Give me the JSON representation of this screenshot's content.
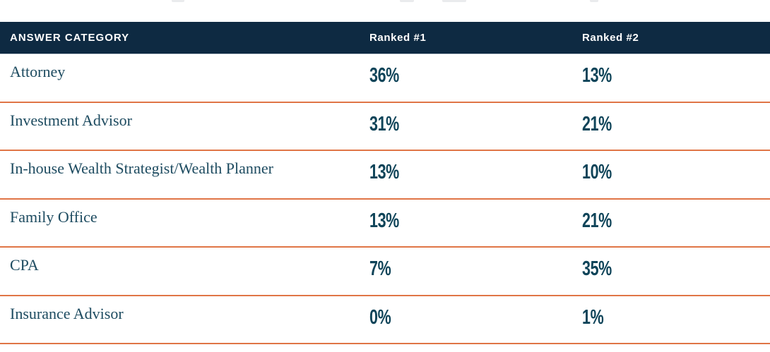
{
  "table": {
    "columns": [
      "ANSWER CATEGORY",
      "Ranked #1",
      "Ranked #2"
    ],
    "rows": [
      {
        "category": "Attorney",
        "ranked1": "36%",
        "ranked2": "13%"
      },
      {
        "category": "Investment Advisor",
        "ranked1": "31%",
        "ranked2": "21%"
      },
      {
        "category": "In-house Wealth Strategist/Wealth Planner",
        "ranked1": "13%",
        "ranked2": "10%"
      },
      {
        "category": "Family Office",
        "ranked1": "13%",
        "ranked2": "21%"
      },
      {
        "category": "CPA",
        "ranked1": "7%",
        "ranked2": "35%"
      },
      {
        "category": "Insurance Advisor",
        "ranked1": "0%",
        "ranked2": "1%"
      }
    ]
  },
  "colors": {
    "header_background": "#0e2a42",
    "header_text": "#ffffff",
    "category_text": "#1d4b60",
    "percent_text": "#0f4459",
    "divider_orange": "#e07546",
    "page_background": "#ffffff"
  },
  "chart_data": {
    "type": "table",
    "title": "",
    "columns": [
      "ANSWER CATEGORY",
      "Ranked #1",
      "Ranked #2"
    ],
    "rows": [
      [
        "Attorney",
        36,
        13
      ],
      [
        "Investment Advisor",
        31,
        21
      ],
      [
        "In-house Wealth Strategist/Wealth Planner",
        13,
        10
      ],
      [
        "Family Office",
        13,
        21
      ],
      [
        "CPA",
        7,
        35
      ],
      [
        "Insurance Advisor",
        0,
        1
      ]
    ],
    "value_unit": "%"
  }
}
